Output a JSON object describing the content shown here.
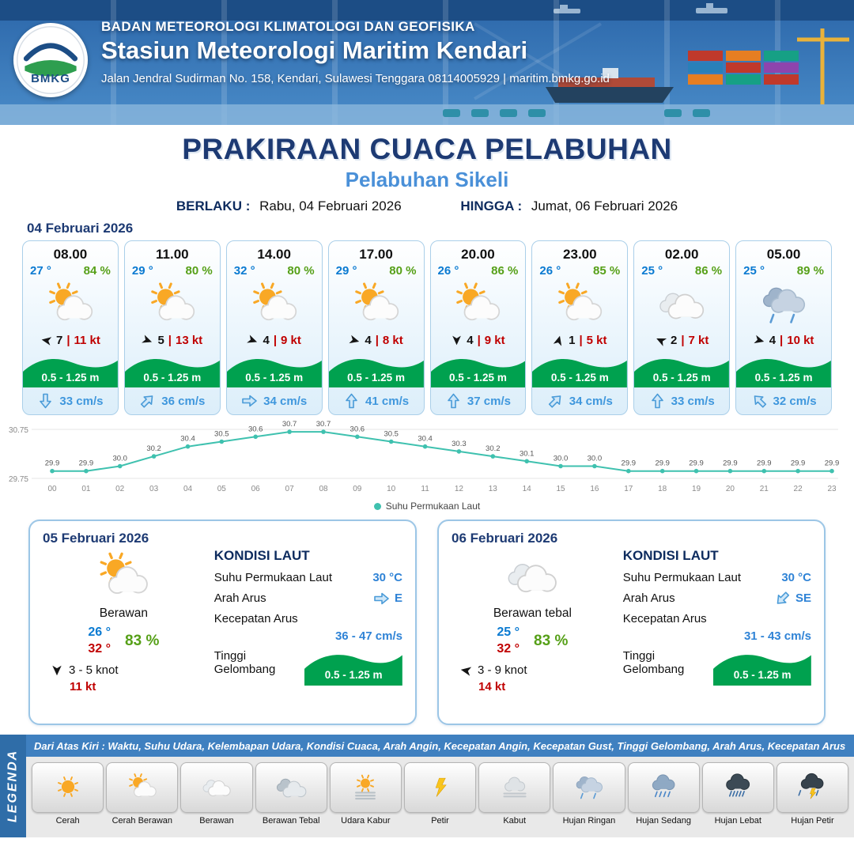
{
  "header": {
    "org": "BADAN METEOROLOGI KLIMATOLOGI DAN GEOFISIKA",
    "station": "Stasiun Meteorologi Maritim Kendari",
    "address": "Jalan Jendral Sudirman No. 158, Kendari, Sulawesi Tenggara  08114005929 | maritim.bmkg.go.id",
    "logo_text": "BMKG"
  },
  "title": {
    "main": "PRAKIRAAN CUACA PELABUHAN",
    "port": "Pelabuhan Sikeli",
    "valid_label": "BERLAKU :",
    "valid_value": "Rabu, 04 Februari 2026",
    "until_label": "HINGGA :",
    "until_value": "Jumat, 06 Februari 2026"
  },
  "forecast": {
    "date": "04 Februari 2026",
    "separator": "|",
    "cards": [
      {
        "time": "08.00",
        "temp": "27 °",
        "rh": "84 %",
        "icon": "cerah-berawan",
        "wind": "7",
        "gust": "11 kt",
        "wind_deg": 190,
        "wave": "0.5 - 1.25 m",
        "cur": "33 cm/s",
        "cur_deg": 90
      },
      {
        "time": "11.00",
        "temp": "29 °",
        "rh": "80 %",
        "icon": "cerah-berawan",
        "wind": "5",
        "gust": "13 kt",
        "wind_deg": 20,
        "wave": "0.5 - 1.25 m",
        "cur": "36 cm/s",
        "cur_deg": -45
      },
      {
        "time": "14.00",
        "temp": "32 °",
        "rh": "80 %",
        "icon": "cerah-berawan",
        "wind": "4",
        "gust": "9 kt",
        "wind_deg": 20,
        "wave": "0.5 - 1.25 m",
        "cur": "34 cm/s",
        "cur_deg": 0
      },
      {
        "time": "17.00",
        "temp": "29 °",
        "rh": "80 %",
        "icon": "cerah-berawan",
        "wind": "4",
        "gust": "8 kt",
        "wind_deg": 15,
        "wave": "0.5 - 1.25 m",
        "cur": "41 cm/s",
        "cur_deg": -90
      },
      {
        "time": "20.00",
        "temp": "26 °",
        "rh": "86 %",
        "icon": "cerah-berawan",
        "wind": "4",
        "gust": "9 kt",
        "wind_deg": 90,
        "wave": "0.5 - 1.25 m",
        "cur": "37 cm/s",
        "cur_deg": -90
      },
      {
        "time": "23.00",
        "temp": "26 °",
        "rh": "85 %",
        "icon": "cerah-berawan",
        "wind": "1",
        "gust": "5 kt",
        "wind_deg": -75,
        "wave": "0.5 - 1.25 m",
        "cur": "34 cm/s",
        "cur_deg": -45
      },
      {
        "time": "02.00",
        "temp": "25 °",
        "rh": "86 %",
        "icon": "berawan",
        "wind": "2",
        "gust": "7 kt",
        "wind_deg": 205,
        "wave": "0.5 - 1.25 m",
        "cur": "33 cm/s",
        "cur_deg": -90
      },
      {
        "time": "05.00",
        "temp": "25 °",
        "rh": "89 %",
        "icon": "hujan-ringan",
        "wind": "4",
        "gust": "10 kt",
        "wind_deg": 15,
        "wave": "0.5 - 1.25 m",
        "cur": "32 cm/s",
        "cur_deg": -135
      }
    ]
  },
  "chart_data": {
    "type": "line",
    "x": [
      "00",
      "01",
      "02",
      "03",
      "04",
      "05",
      "06",
      "07",
      "08",
      "09",
      "10",
      "11",
      "12",
      "13",
      "14",
      "15",
      "16",
      "17",
      "18",
      "19",
      "20",
      "21",
      "22",
      "23"
    ],
    "series": [
      {
        "name": "Suhu Permukaan Laut",
        "values": [
          29.9,
          29.9,
          30.0,
          30.2,
          30.4,
          30.5,
          30.6,
          30.7,
          30.7,
          30.6,
          30.5,
          30.4,
          30.3,
          30.2,
          30.1,
          30.0,
          30.0,
          29.9,
          29.9,
          29.9,
          29.9,
          29.9,
          29.9,
          29.9
        ]
      }
    ],
    "ylim": [
      29.75,
      30.75
    ],
    "yticks": [
      "30.75",
      "29.75"
    ],
    "legend": "Suhu Permukaan Laut",
    "line_color": "#3fc1af",
    "xlabel": "",
    "ylabel": ""
  },
  "sea_labels": {
    "kondisi": "KONDISI LAUT",
    "sst": "Suhu Permukaan Laut",
    "dir": "Arah Arus",
    "cur": "Kecepatan Arus",
    "wave": "Tinggi Gelombang"
  },
  "daily": [
    {
      "date": "05 Februari 2026",
      "icon": "cerah-berawan",
      "desc": "Berawan",
      "temp_low": "26 °",
      "temp_high": "32 °",
      "rh": "83 %",
      "wind_deg": 90,
      "wind_range": "3 - 5 knot",
      "gust": "11 kt",
      "sea": {
        "sst": "30 °C",
        "dir": "E",
        "cur_deg": 0,
        "cur_range": "36 - 47 cm/s",
        "wave": "0.5 - 1.25 m"
      }
    },
    {
      "date": "06 Februari 2026",
      "icon": "berawan",
      "desc": "Berawan tebal",
      "temp_low": "25 °",
      "temp_high": "32 °",
      "rh": "83 %",
      "wind_deg": 190,
      "wind_range": "3 - 9 knot",
      "gust": "14 kt",
      "sea": {
        "sst": "30 °C",
        "dir": "SE",
        "cur_deg": 135,
        "cur_range": "31 - 43 cm/s",
        "wave": "0.5 - 1.25 m"
      }
    }
  ],
  "legend": {
    "title": "LEGENDA",
    "description": "Dari Atas Kiri : Waktu, Suhu Udara, Kelembapan Udara, Kondisi Cuaca, Arah Angin, Kecepatan Angin, Kecepatan Gust, Tinggi Gelombang, Arah Arus, Kecepatan Arus",
    "items": [
      {
        "label": "Cerah",
        "icon": "cerah"
      },
      {
        "label": "Cerah Berawan",
        "icon": "cerah-berawan"
      },
      {
        "label": "Berawan",
        "icon": "berawan"
      },
      {
        "label": "Berawan Tebal",
        "icon": "berawan-tebal"
      },
      {
        "label": "Udara Kabur",
        "icon": "udara-kabur"
      },
      {
        "label": "Petir",
        "icon": "petir"
      },
      {
        "label": "Kabut",
        "icon": "kabut"
      },
      {
        "label": "Hujan Ringan",
        "icon": "hujan-ringan"
      },
      {
        "label": "Hujan Sedang",
        "icon": "hujan-sedang"
      },
      {
        "label": "Hujan Lebat",
        "icon": "hujan-lebat"
      },
      {
        "label": "Hujan Petir",
        "icon": "hujan-petir"
      }
    ]
  },
  "colors": {
    "accent_navy": "#1d3a73",
    "accent_blue": "#4a90d8",
    "temp_blue": "#0a7ad1",
    "temp_red": "#c00000",
    "rh_green": "#56a018",
    "wave_green": "#00a14f",
    "current_blue": "#3f97dd",
    "chart_teal": "#3fc1af",
    "header_blue": "#2b66a9",
    "legend_strip_blue": "#3f80c0"
  }
}
